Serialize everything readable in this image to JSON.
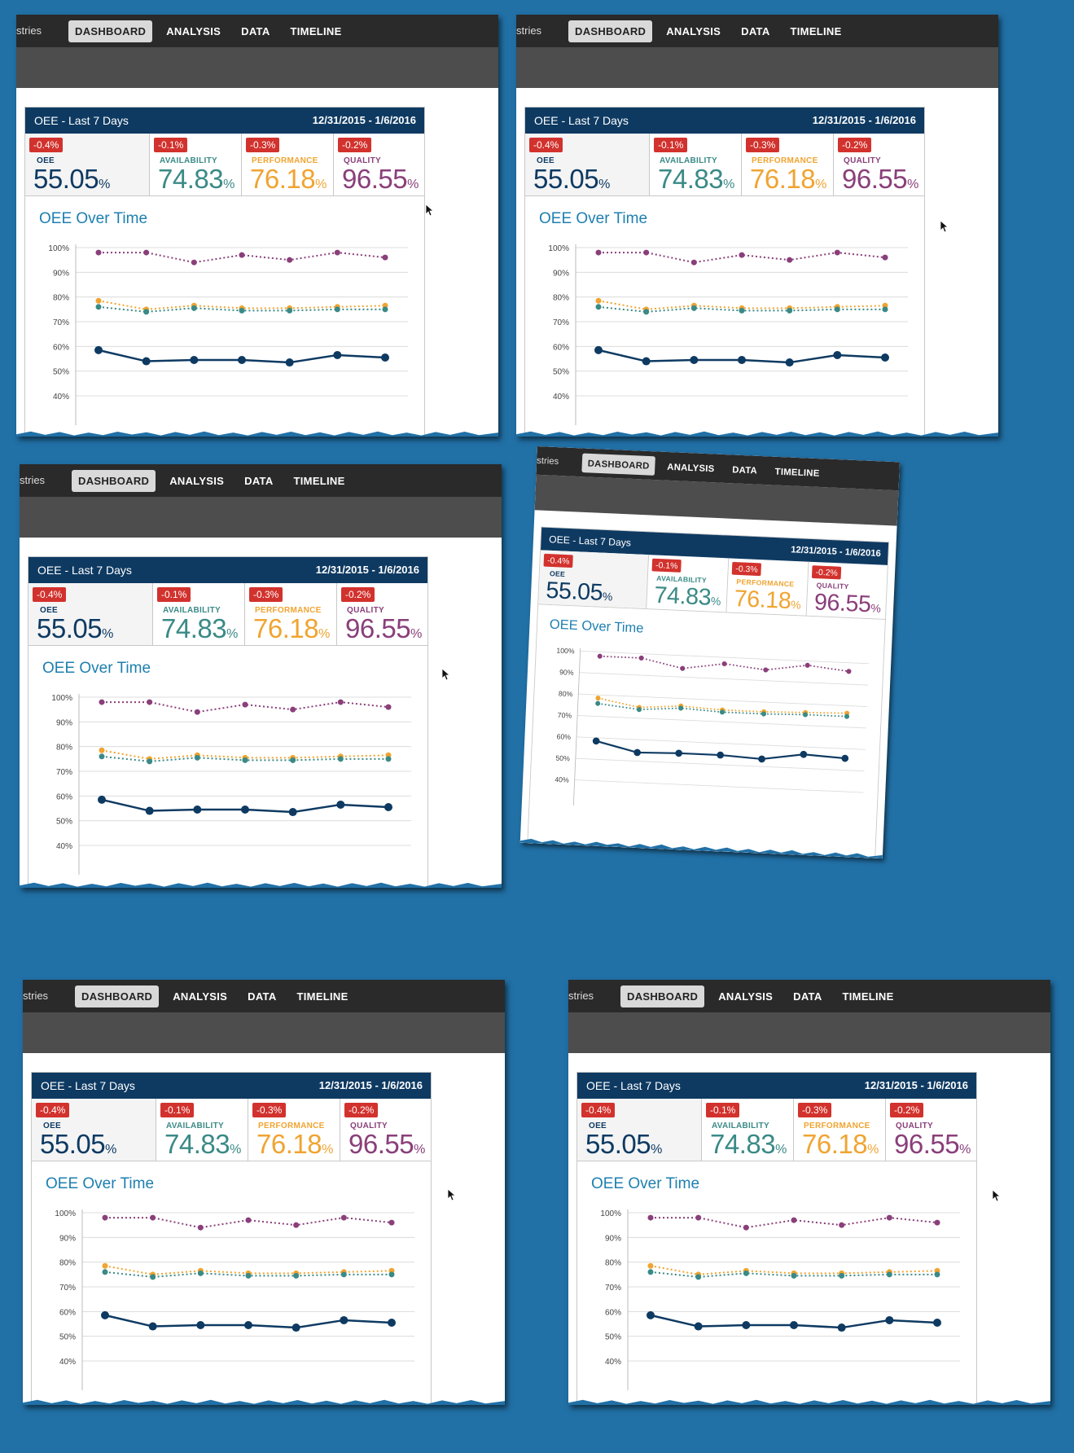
{
  "brand_fragment": "stries",
  "nav": {
    "tabs": [
      "DASHBOARD",
      "ANALYSIS",
      "DATA",
      "TIMELINE"
    ],
    "active": "DASHBOARD"
  },
  "card": {
    "title": "OEE - Last 7 Days",
    "date_range": "12/31/2015 - 1/6/2016"
  },
  "kpis": [
    {
      "delta": "-0.4%",
      "label": "OEE",
      "value": "55.05",
      "unit": "%",
      "color": "#0e3a62"
    },
    {
      "delta": "-0.1%",
      "label": "AVAILABILITY",
      "value": "74.83",
      "unit": "%",
      "color": "#3a8a86"
    },
    {
      "delta": "-0.3%",
      "label": "PERFORMANCE",
      "value": "76.18",
      "unit": "%",
      "color": "#f0a431"
    },
    {
      "delta": "-0.2%",
      "label": "QUALITY",
      "value": "96.55",
      "unit": "%",
      "color": "#8a3f7a"
    }
  ],
  "chart_title": "OEE Over Time",
  "chart_data": {
    "type": "line",
    "y_ticks": [
      "100%",
      "90%",
      "80%",
      "70%",
      "60%",
      "50%",
      "40%"
    ],
    "ylim": [
      40,
      100
    ],
    "grid": true,
    "series": [
      {
        "values": [
          98,
          98,
          94,
          97,
          95,
          98,
          96
        ],
        "color": "#8a3f7a",
        "style": "dotted"
      },
      {
        "values": [
          78.5,
          75,
          76.5,
          75.5,
          75.5,
          76,
          76.5
        ],
        "color": "#f0a431",
        "style": "dotted"
      },
      {
        "values": [
          76,
          74,
          75.5,
          74.5,
          74.5,
          75,
          75
        ],
        "color": "#3a8a86",
        "style": "dotted"
      },
      {
        "values": [
          58.5,
          54,
          54.5,
          54.5,
          53.5,
          56.5,
          55.5
        ],
        "color": "#0e3a62",
        "style": "solid"
      }
    ]
  },
  "colors": {
    "background": "#2170a6",
    "nav": "#2a2a2a",
    "subbar": "#4d4d4d",
    "card_header": "#0e3a62",
    "badge": "#d2322d",
    "chart_title": "#1d7fb0"
  }
}
